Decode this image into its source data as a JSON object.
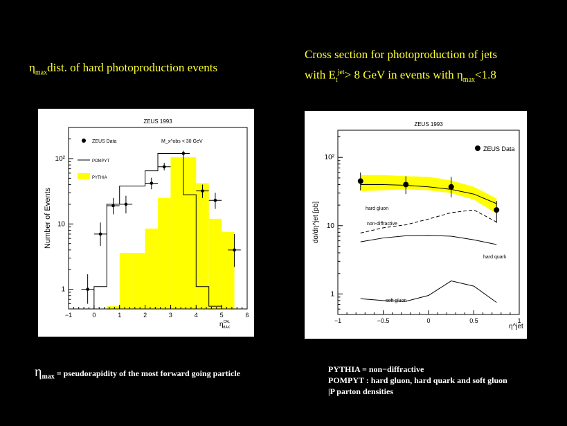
{
  "left_heading": {
    "eta": "η",
    "sub": "max",
    "rest": "dist. of hard photoproduction events"
  },
  "right_heading": {
    "line1": "Cross section for photoproduction of jets",
    "line2_a": "with E",
    "line2_sub": "t",
    "line2_sup": "jet",
    "line2_b": "> 8 GeV in events with η",
    "line2_sub2": "max",
    "line2_c": "<1.8"
  },
  "footnote_left": {
    "eta": "η",
    "sub": "max",
    "text": " = pseudorapidity of the most forward going particle"
  },
  "footnote_right": [
    "PYTHIA = non−diffractive",
    "POMPYT : hard gluon, hard quark and soft gluon",
    "|P parton densities"
  ],
  "chart_data": [
    {
      "type": "bar",
      "title": "ZEUS 1993",
      "ylabel": "Number of Events",
      "xlabel": "η_max^CAL",
      "xlabel_main": "η",
      "xlabel_sup": "CAL",
      "xlabel_sub": "MAX",
      "annotation": "M_x^obs < 30 GeV",
      "ylog": true,
      "xlim": [
        -1,
        6
      ],
      "ylim": [
        0.5,
        300
      ],
      "xticks": [
        "-1",
        "0",
        "1",
        "2",
        "3",
        "4",
        "5",
        "6"
      ],
      "yticks": [
        {
          "v": 1,
          "l": "1"
        },
        {
          "v": 10,
          "l": "10"
        },
        {
          "v": 100,
          "l": "10²"
        }
      ],
      "bin_edges": [
        -1,
        -0.5,
        0,
        0.5,
        1,
        1.5,
        2,
        2.5,
        3,
        3.5,
        4,
        4.5,
        5,
        5.5,
        6
      ],
      "series": [
        {
          "name": "ZEUS Data",
          "kind": "points",
          "x": [
            -0.25,
            0.25,
            0.75,
            1.25,
            2.25,
            2.75,
            3.5,
            4.25,
            4.75,
            5.5
          ],
          "values": [
            1,
            7,
            19,
            20,
            42,
            75,
            120,
            32,
            23,
            4
          ],
          "errlo": [
            0.6,
            4.6,
            14,
            14.5,
            34,
            66,
            110,
            25,
            17,
            2.2
          ],
          "errhi": [
            1.7,
            10.5,
            25,
            27,
            51,
            86,
            132,
            40,
            30,
            7
          ]
        },
        {
          "name": "POMPYT",
          "kind": "step",
          "values": [
            0,
            0,
            1.1,
            20,
            38,
            38,
            65,
            120,
            120,
            28,
            1.1,
            0.55,
            0,
            0
          ]
        },
        {
          "name": "PYTHIA",
          "kind": "filled",
          "values": [
            0,
            0,
            0,
            0.55,
            3.6,
            3.6,
            8.5,
            25,
            105,
            105,
            42,
            12,
            7.5,
            0
          ]
        }
      ],
      "legend": [
        "ZEUS Data",
        "POMPYT",
        "PYTHIA"
      ],
      "legend_position": "top-left"
    },
    {
      "type": "line",
      "title": "ZEUS 1993",
      "ylabel": "dσ/dη^jet [pb]",
      "xlabel": "η^jet",
      "ylog": true,
      "xlim": [
        -1,
        1
      ],
      "ylim": [
        0.5,
        250
      ],
      "xticks": [
        "-1",
        "-0.5",
        "0",
        "0.5",
        "1"
      ],
      "yticks": [
        {
          "v": 1,
          "l": "1"
        },
        {
          "v": 10,
          "l": "10"
        },
        {
          "v": 100,
          "l": "10²"
        }
      ],
      "series": [
        {
          "name": "ZEUS Data",
          "kind": "points",
          "x": [
            -0.75,
            -0.25,
            0.25,
            0.75
          ],
          "values": [
            45,
            40,
            37,
            17
          ],
          "errlo": [
            33,
            29,
            26,
            11
          ],
          "errhi": [
            60,
            53,
            52,
            23
          ]
        },
        {
          "name": "",
          "kind": "band",
          "x": [
            -0.75,
            -0.5,
            -0.25,
            0,
            0.25,
            0.5,
            0.75
          ],
          "lo": [
            32,
            33,
            34,
            33,
            30,
            24,
            15
          ],
          "hi": [
            55,
            55,
            53,
            52,
            46,
            37,
            25
          ]
        },
        {
          "name": "hard gluon",
          "kind": "line",
          "x": [
            -0.75,
            -0.5,
            -0.25,
            0,
            0.25,
            0.5,
            0.75
          ],
          "values": [
            40,
            40,
            39,
            37,
            34,
            29,
            21
          ]
        },
        {
          "name": "non-diffractive",
          "kind": "dashed",
          "x": [
            -0.75,
            -0.5,
            -0.25,
            0,
            0.25,
            0.5,
            0.75
          ],
          "values": [
            7.8,
            9.3,
            10.3,
            12.5,
            15.5,
            17,
            11.3
          ]
        },
        {
          "name": "hard quark",
          "kind": "line",
          "x": [
            -0.75,
            -0.5,
            -0.25,
            0,
            0.25,
            0.5,
            0.75
          ],
          "values": [
            5.8,
            6.6,
            7.1,
            7.2,
            7,
            6.2,
            5.3
          ]
        },
        {
          "name": "soft gluon",
          "kind": "line",
          "x": [
            -0.75,
            -0.5,
            -0.25,
            0,
            0.25,
            0.5,
            0.75
          ],
          "values": [
            0.85,
            0.8,
            0.78,
            0.95,
            1.55,
            1.3,
            0.75
          ]
        }
      ],
      "legend": [
        "ZEUS Data"
      ],
      "legend_position": "top-right",
      "curve_labels": [
        "hard gluon",
        "non-diffractive",
        "hard quark",
        "soft gluon"
      ]
    }
  ],
  "colors": {
    "background": "#000000",
    "title_text": "#ffff33",
    "band": "#ffff00",
    "panel": "#ffffff"
  }
}
